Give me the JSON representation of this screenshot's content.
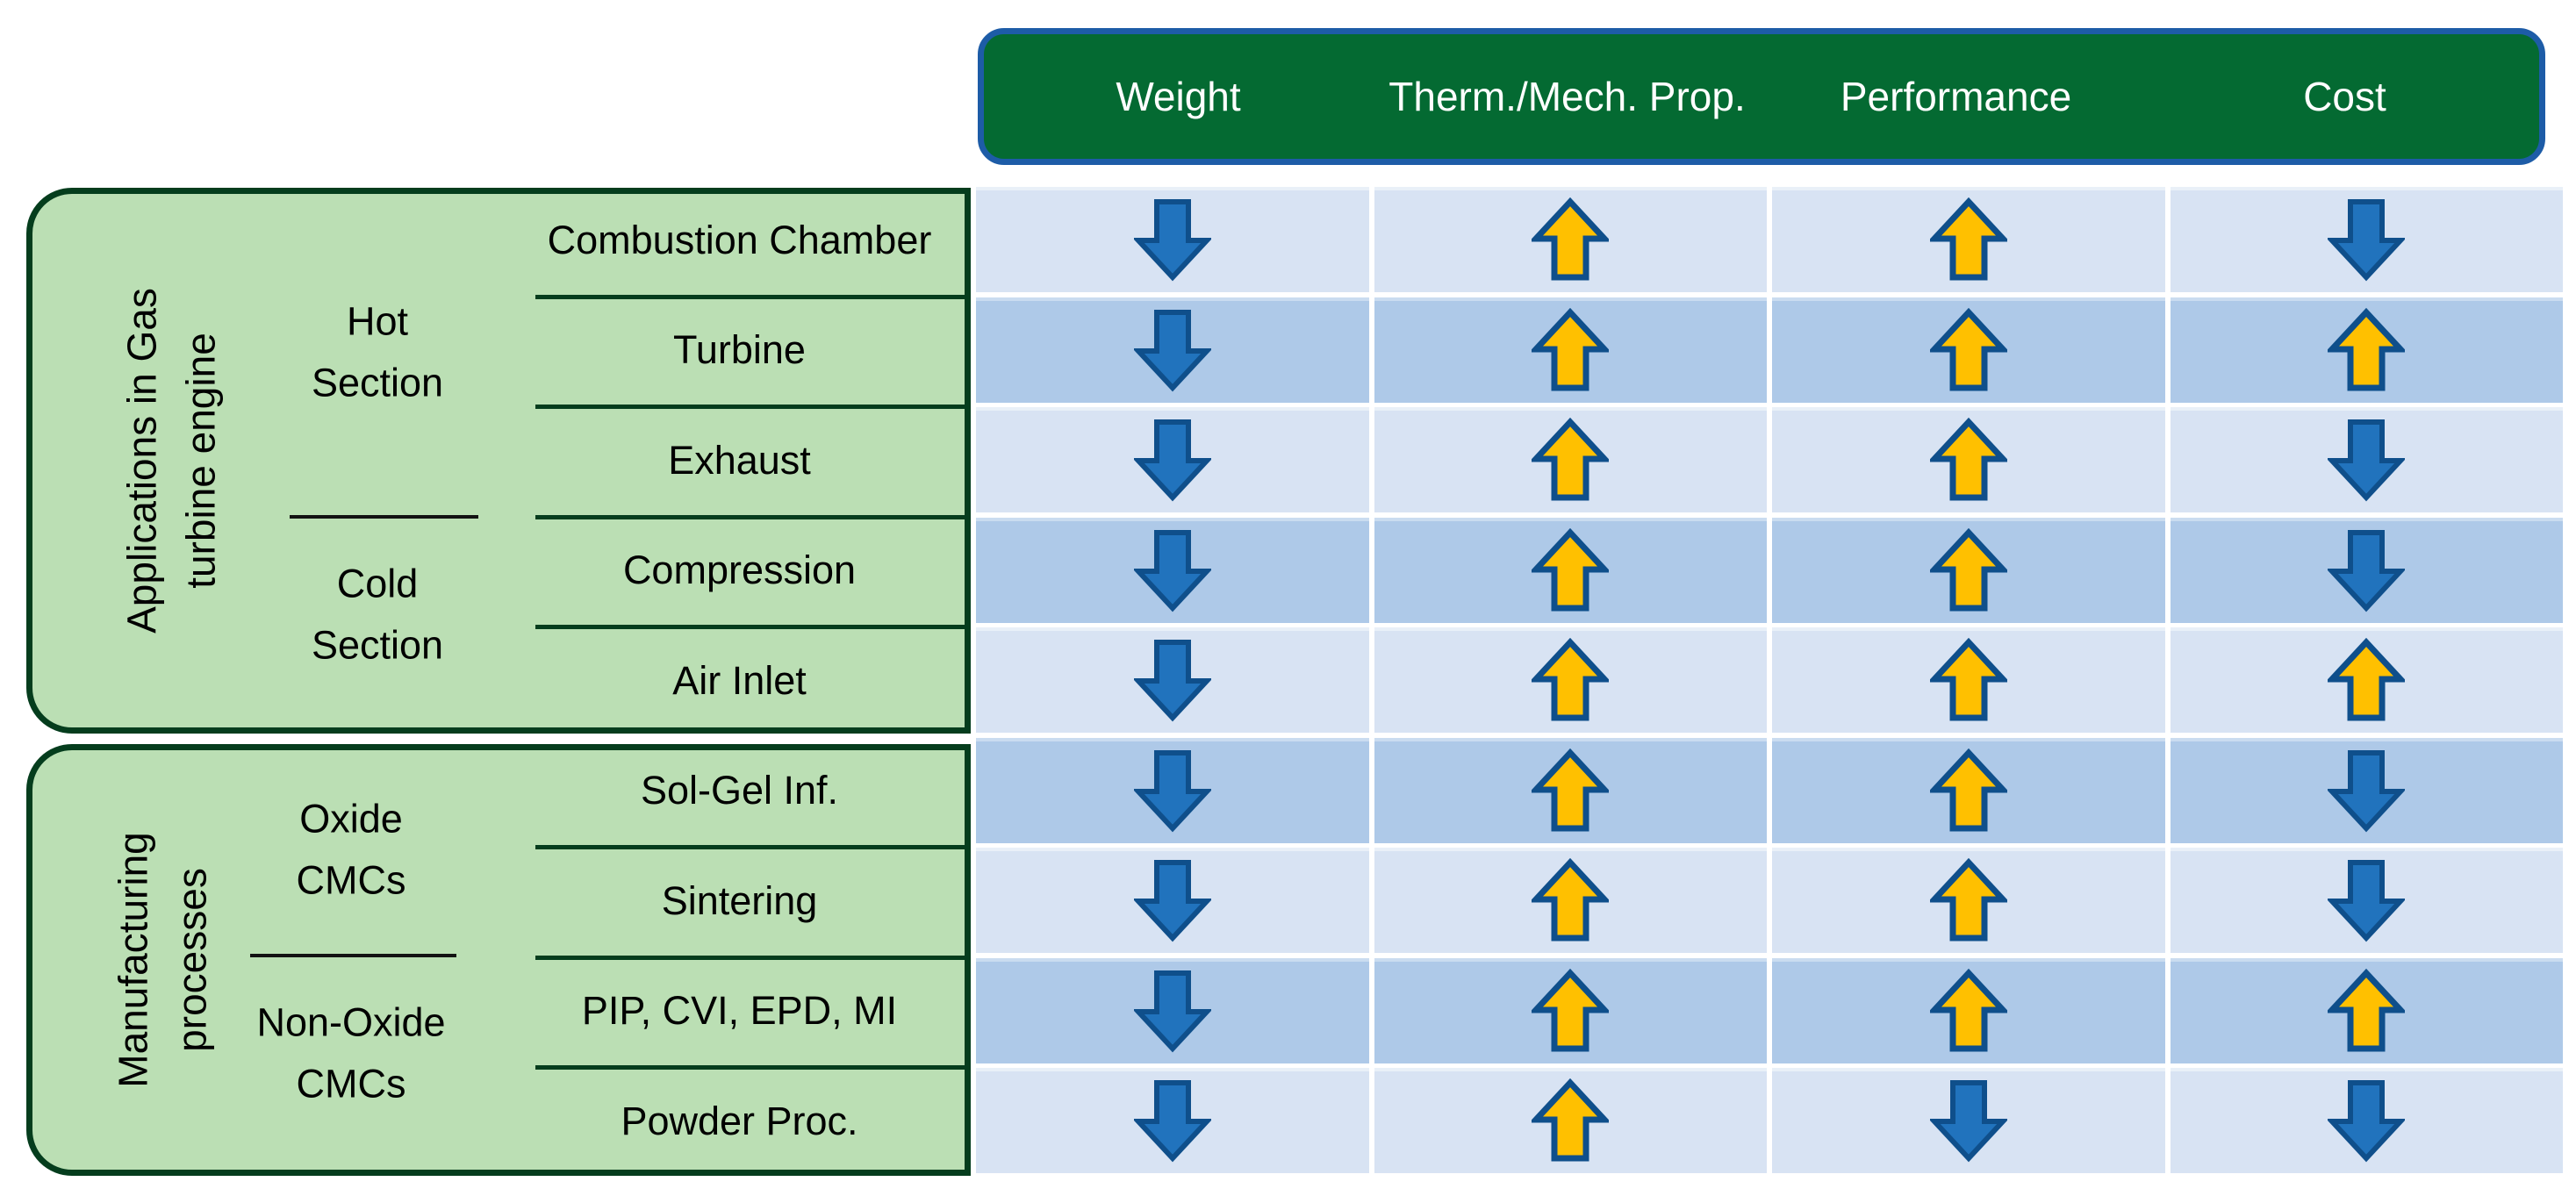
{
  "header": {
    "columns": [
      "Weight",
      "Therm./Mech. Prop.",
      "Performance",
      "Cost"
    ]
  },
  "groups": {
    "gas_turbine": {
      "title": "Applications in Gas\nturbine engine",
      "sections": [
        {
          "name": "Hot\nSection"
        },
        {
          "name": "Cold\nSection"
        }
      ]
    },
    "manufacturing": {
      "title": "Manufacturing\nprocesses",
      "sections": [
        {
          "name": "Oxide\nCMCs"
        },
        {
          "name": "Non-Oxide\nCMCs"
        }
      ]
    }
  },
  "matrix": {
    "rows": [
      {
        "label": "Combustion Chamber",
        "group": "Hot Section",
        "cells": [
          "down",
          "up",
          "up",
          "down"
        ]
      },
      {
        "label": "Turbine",
        "group": "Hot Section",
        "cells": [
          "down",
          "up",
          "up",
          "up"
        ]
      },
      {
        "label": "Exhaust",
        "group": "Hot Section",
        "cells": [
          "down",
          "up",
          "up",
          "down"
        ]
      },
      {
        "label": "Compression",
        "group": "Cold Section",
        "cells": [
          "down",
          "up",
          "up",
          "down"
        ]
      },
      {
        "label": "Air Inlet",
        "group": "Cold Section",
        "cells": [
          "down",
          "up",
          "up",
          "up"
        ]
      },
      {
        "label": "Sol-Gel Inf.",
        "group": "Oxide CMCs",
        "cells": [
          "down",
          "up",
          "up",
          "down"
        ]
      },
      {
        "label": "Sintering",
        "group": "Oxide CMCs",
        "cells": [
          "down",
          "up",
          "up",
          "down"
        ]
      },
      {
        "label": "PIP, CVI, EPD, MI",
        "group": "Non-Oxide CMCs",
        "cells": [
          "down",
          "up",
          "up",
          "up"
        ]
      },
      {
        "label": "Powder Proc.",
        "group": "Non-Oxide CMCs",
        "cells": [
          "down",
          "up",
          "down",
          "down"
        ]
      }
    ]
  },
  "icons": {
    "up": "up-arrow-icon",
    "down": "down-arrow-icon"
  },
  "colors": {
    "header_bg": "#046a32",
    "header_border": "#1d5ca7",
    "header_text": "#ffffff",
    "row_light": "#d8e3f3",
    "row_dark": "#aec9e8",
    "arrow_up_fill": "#ffc000",
    "arrow_down_fill": "#2173bd",
    "arrow_outline": "#0f4f8b",
    "panel_bg": "#bbdfb4",
    "panel_border": "#053d1d"
  }
}
